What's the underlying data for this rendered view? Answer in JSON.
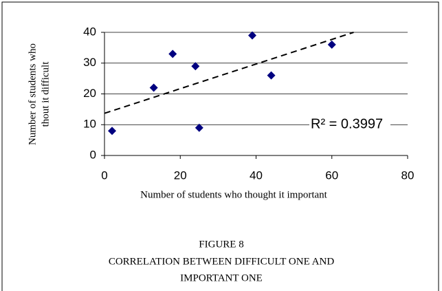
{
  "chart_data": {
    "type": "scatter",
    "x_label": "Number of students who thought it important",
    "y_label": [
      "Number of students who",
      "thout it difficult"
    ],
    "x": [
      2,
      13,
      18,
      24,
      25,
      39,
      44,
      60
    ],
    "series": [
      {
        "color": "#000080",
        "values": [
          8,
          22,
          33,
          29,
          9,
          39,
          26,
          36
        ]
      }
    ],
    "trendline": {
      "slope": 0.4,
      "intercept": 13.7,
      "color": "#000000"
    },
    "annotation": "R² = 0.3997",
    "xlim": [
      0,
      80
    ],
    "xticks": [
      0,
      20,
      40,
      60,
      80
    ],
    "ylim": [
      0,
      40
    ],
    "yticks": [
      0,
      10,
      20,
      30,
      40
    ],
    "grid": true
  },
  "caption": [
    "FIGURE 8",
    "CORRELATION BETWEEN DIFFICULT ONE AND",
    "IMPORTANT ONE"
  ]
}
